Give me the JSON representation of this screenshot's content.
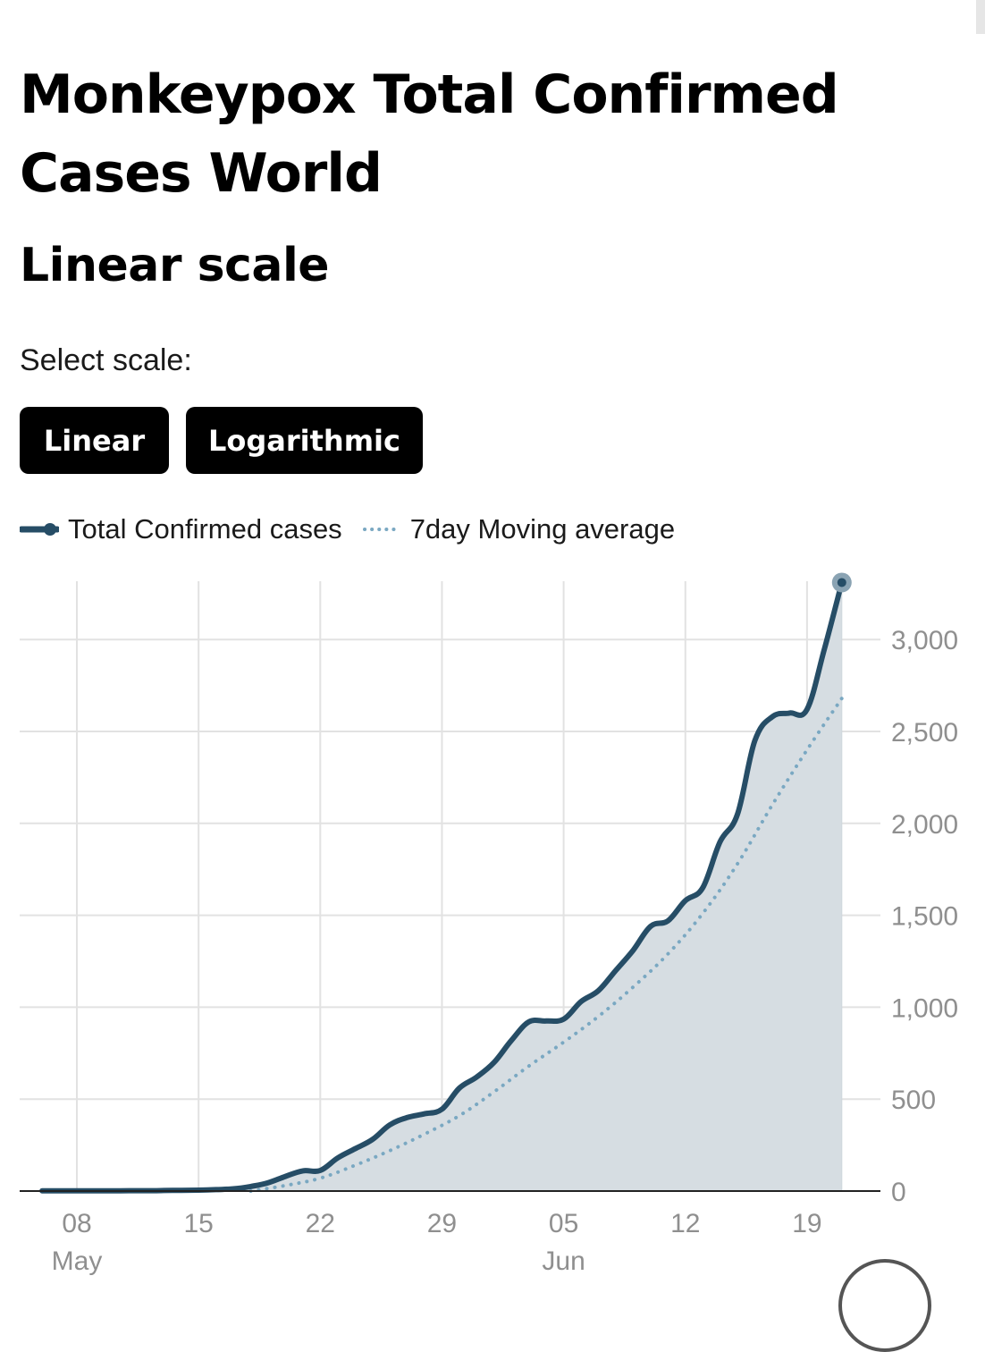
{
  "header": {
    "title": "Monkeypox Total Confirmed Cases World",
    "subtitle": "Linear scale"
  },
  "controls": {
    "select_label": "Select scale:",
    "buttons": [
      "Linear",
      "Logarithmic"
    ]
  },
  "legend": {
    "items": [
      "Total Confirmed cases",
      "7day Moving average"
    ]
  },
  "colors": {
    "line": "#264d66",
    "moving_avg": "#7aa8c2",
    "area": "#d6dde2",
    "grid": "#e2e2e2",
    "axis_text": "#8f8f8f"
  },
  "chart_data": {
    "type": "area",
    "title": "Monkeypox Total Confirmed Cases World",
    "subtitle": "Linear scale",
    "x_unit": "date",
    "xticks": [
      {
        "date": "2022-05-08",
        "day": "08",
        "month": "May"
      },
      {
        "date": "2022-05-15",
        "day": "15",
        "month": ""
      },
      {
        "date": "2022-05-22",
        "day": "22",
        "month": ""
      },
      {
        "date": "2022-05-29",
        "day": "29",
        "month": ""
      },
      {
        "date": "2022-06-05",
        "day": "05",
        "month": "Jun"
      },
      {
        "date": "2022-06-12",
        "day": "12",
        "month": ""
      },
      {
        "date": "2022-06-19",
        "day": "19",
        "month": ""
      }
    ],
    "yticks": [
      0,
      500,
      1000,
      1500,
      2000,
      2500,
      3000
    ],
    "yticks_labels": [
      "0",
      "500",
      "1,000",
      "1,500",
      "2,000",
      "2,500",
      "3,000"
    ],
    "ylim": [
      0,
      3200
    ],
    "xlim": [
      "2022-05-06",
      "2022-06-21"
    ],
    "y_axis_side": "right",
    "grid": true,
    "legend_position": "top-left",
    "series": [
      {
        "name": "Total Confirmed cases",
        "style": "solid-area",
        "x": [
          "2022-05-06",
          "2022-05-07",
          "2022-05-08",
          "2022-05-09",
          "2022-05-10",
          "2022-05-11",
          "2022-05-12",
          "2022-05-13",
          "2022-05-14",
          "2022-05-15",
          "2022-05-16",
          "2022-05-17",
          "2022-05-18",
          "2022-05-19",
          "2022-05-20",
          "2022-05-21",
          "2022-05-22",
          "2022-05-23",
          "2022-05-24",
          "2022-05-25",
          "2022-05-26",
          "2022-05-27",
          "2022-05-28",
          "2022-05-29",
          "2022-05-30",
          "2022-05-31",
          "2022-06-01",
          "2022-06-02",
          "2022-06-03",
          "2022-06-04",
          "2022-06-05",
          "2022-06-06",
          "2022-06-07",
          "2022-06-08",
          "2022-06-09",
          "2022-06-10",
          "2022-06-11",
          "2022-06-12",
          "2022-06-13",
          "2022-06-14",
          "2022-06-15",
          "2022-06-16",
          "2022-06-17",
          "2022-06-18",
          "2022-06-19",
          "2022-06-20",
          "2022-06-21"
        ],
        "values": [
          1,
          1,
          1,
          1,
          1,
          2,
          2,
          3,
          4,
          5,
          8,
          12,
          25,
          45,
          80,
          110,
          112,
          180,
          230,
          280,
          360,
          400,
          420,
          445,
          560,
          620,
          700,
          820,
          920,
          925,
          935,
          1030,
          1090,
          1200,
          1310,
          1440,
          1470,
          1580,
          1650,
          1900,
          2050,
          2450,
          2580,
          2600,
          2620,
          2950,
          3310
        ]
      },
      {
        "name": "7day Moving average",
        "style": "dotted",
        "x": [
          "2022-05-18",
          "2022-05-20",
          "2022-05-22",
          "2022-05-24",
          "2022-05-26",
          "2022-05-28",
          "2022-05-30",
          "2022-06-01",
          "2022-06-03",
          "2022-06-05",
          "2022-06-07",
          "2022-06-09",
          "2022-06-11",
          "2022-06-13",
          "2022-06-15",
          "2022-06-17",
          "2022-06-19",
          "2022-06-21"
        ],
        "values": [
          0,
          30,
          70,
          140,
          220,
          310,
          410,
          540,
          680,
          810,
          950,
          1110,
          1290,
          1510,
          1780,
          2100,
          2400,
          2680
        ]
      }
    ]
  }
}
